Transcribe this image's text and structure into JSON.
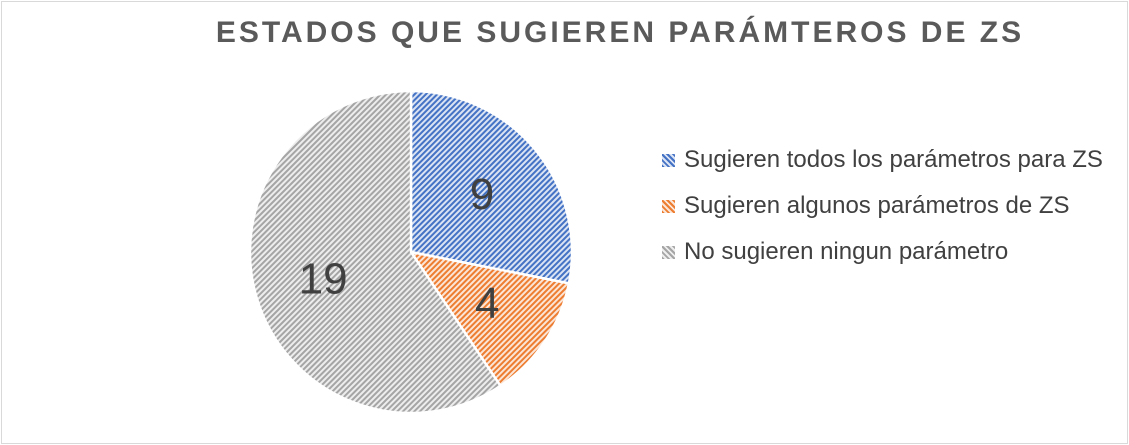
{
  "chart_data": {
    "type": "pie",
    "title": "ESTADOS QUE SUGIEREN PARÁMTEROS DE ZS",
    "categories": [
      "Sugieren todos los parámetros para ZS",
      "Sugieren algunos parámetros de ZS",
      "No sugieren ningun parámetro"
    ],
    "values": [
      9,
      4,
      19
    ],
    "data_labels": [
      "9",
      "4",
      "19"
    ],
    "colors": [
      "#4472c4",
      "#ed7d31",
      "#a5a5a5"
    ],
    "fill_pattern": "dotted-hatch",
    "legend_position": "right"
  }
}
